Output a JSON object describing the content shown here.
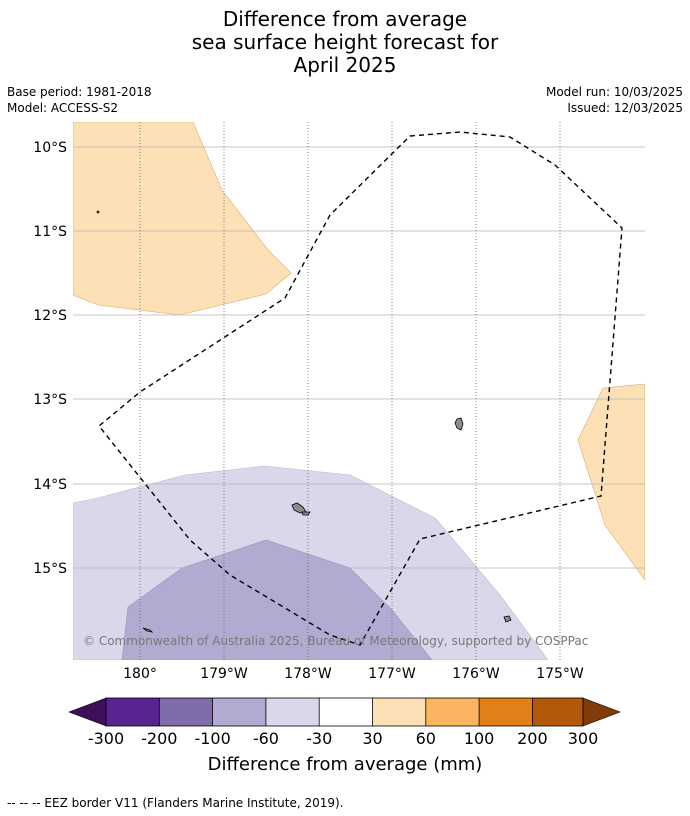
{
  "title": {
    "line1": "Difference from average",
    "line2": "sea surface height forecast for",
    "line3": "April 2025"
  },
  "meta": {
    "base_period": "Base period: 1981-2018",
    "model": "Model: ACCESS-S2",
    "model_run": "Model run: 10/03/2025",
    "issued": "Issued: 12/03/2025"
  },
  "map": {
    "lat_labels": [
      "10°S",
      "11°S",
      "12°S",
      "13°S",
      "14°S",
      "15°S"
    ],
    "lon_labels": [
      "180°",
      "179°W",
      "178°W",
      "177°W",
      "176°W",
      "175°W"
    ],
    "copyright": "© Commonwealth of Australia 2025, Bureau of Meteorology, supported by COSPPac",
    "colors": {
      "positive_30_60": "#fde0b6",
      "negative_60_30": "#d8d8ea",
      "negative_100_60": "#b1abd2",
      "land": "#8c8c8c",
      "eez_border": "#000000"
    }
  },
  "colorbar": {
    "label": "Difference from average (mm)",
    "ticks": [
      "-300",
      "-200",
      "-100",
      "-60",
      "-30",
      "30",
      "60",
      "100",
      "200",
      "300"
    ],
    "colors": [
      "#3f0f5c",
      "#5a2490",
      "#7e6cab",
      "#b1abd2",
      "#d8d8ea",
      "#ffffff",
      "#fde0b6",
      "#fbb45f",
      "#e08016",
      "#b35806",
      "#7f3b08"
    ]
  },
  "footer": {
    "legend": "--  --  -- EEZ border V11 (Flanders Marine Institute, 2019)."
  }
}
